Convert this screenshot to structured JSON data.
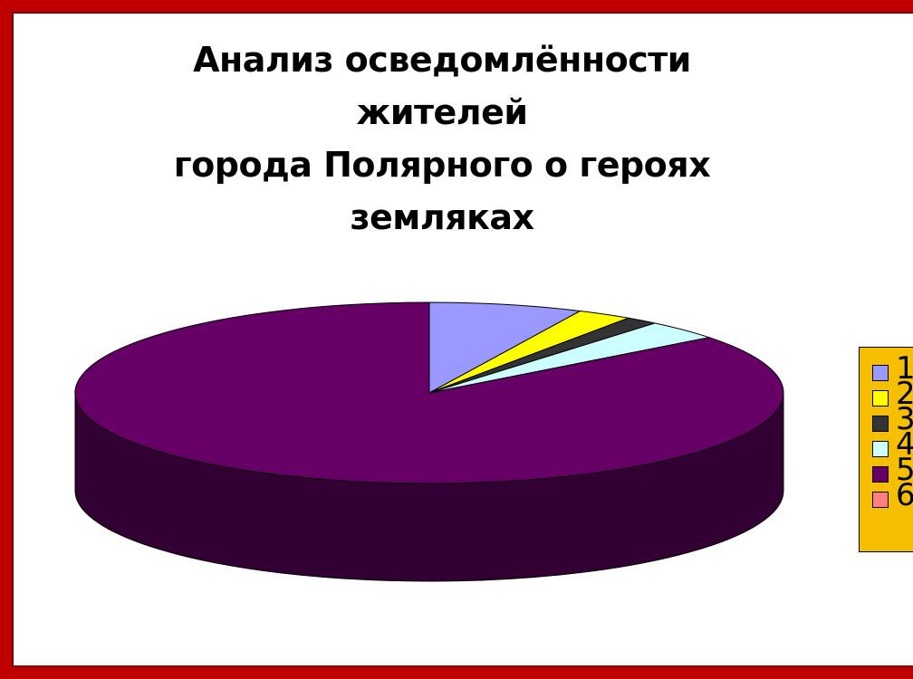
{
  "colors": {
    "frame": "#c00000",
    "legend_bg": "#f5bf00"
  },
  "chart_data": {
    "type": "pie",
    "title": "Анализ осведомлённости жителей города Полярного о героях земляках",
    "title_lines": [
      "Анализ осведомлённости жителей",
      "города Полярного о героях",
      "земляках"
    ],
    "legend_position": "right",
    "three_d": true,
    "categories": [
      "1",
      "2",
      "3",
      "4",
      "5",
      "6"
    ],
    "values": [
      7,
      2.5,
      1.5,
      3.5,
      85.5,
      0
    ],
    "colors": [
      "#9999ff",
      "#ffff00",
      "#333333",
      "#ccffff",
      "#660066",
      "#ff8080"
    ],
    "side_colors": [
      "#4d4d80",
      "#808000",
      "#1a1a1a",
      "#668080",
      "#330033",
      "#804040"
    ]
  }
}
